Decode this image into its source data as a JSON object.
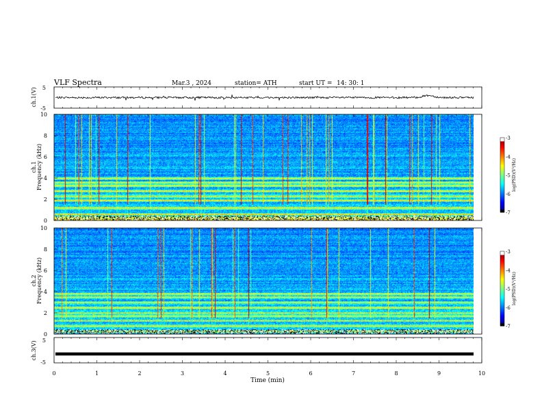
{
  "header": {
    "title": "VLF  Spectra",
    "date": "Mar.3  , 2024",
    "station": "station= ATH",
    "start_label": "start  UT  =",
    "start_time": "14: 30: 1"
  },
  "chart_data": [
    {
      "type": "line",
      "name": "ch1-waveform",
      "ylabel": "ch.1(V)",
      "ylim": [
        -5,
        5
      ],
      "yticks": [
        "5",
        "-5"
      ],
      "xlim": [
        0,
        10
      ],
      "baseline": 0,
      "bump": {
        "x": 8.75,
        "value": 1
      }
    },
    {
      "type": "heatmap",
      "name": "ch1-spectrogram",
      "ylabel_line1": "ch.1",
      "ylabel_line2": "Frequency  (kHz)",
      "ylim": [
        0,
        10
      ],
      "yticks": [
        "0",
        "2",
        "4",
        "6",
        "8",
        "10"
      ],
      "xlim": [
        0,
        9.8
      ],
      "strong_bands_khz": [
        0.1,
        0.3,
        0.6,
        1.2,
        1.9,
        2.3,
        2.8,
        3.3,
        3.6,
        4.0
      ],
      "colorbar": {
        "label": "log(PSD)(V²/Hz)",
        "range": [
          -7,
          -3
        ],
        "ticks": [
          "-3",
          "-4",
          "-5",
          "-6",
          "-7"
        ]
      }
    },
    {
      "type": "heatmap",
      "name": "ch2-spectrogram",
      "ylabel_line1": "ch.2",
      "ylabel_line2": "Frequency  (kHz)",
      "ylim": [
        0,
        10
      ],
      "yticks": [
        "0",
        "2",
        "4",
        "6",
        "8",
        "10"
      ],
      "xlim": [
        0,
        9.8
      ],
      "strong_bands_khz": [
        0.3,
        0.8,
        1.3,
        1.7,
        2.0,
        2.5,
        3.0,
        3.5,
        3.8
      ],
      "colorbar": {
        "label": "log(PSD)(V²/Hz)",
        "range": [
          -7,
          -3
        ],
        "ticks": [
          "-3",
          "-4",
          "-5",
          "-6",
          "-7"
        ]
      }
    },
    {
      "type": "line",
      "name": "ch3-waveform",
      "ylabel": "ch.3(V)",
      "ylim": [
        -5,
        5
      ],
      "yticks": [
        "5",
        "-5"
      ],
      "xlim": [
        0,
        10
      ],
      "baseline": -1.5
    }
  ],
  "xaxis": {
    "label": "Time  (min)",
    "ticks": [
      "0",
      "1",
      "2",
      "3",
      "4",
      "5",
      "6",
      "7",
      "8",
      "9",
      "10"
    ],
    "range": [
      0,
      10
    ]
  }
}
